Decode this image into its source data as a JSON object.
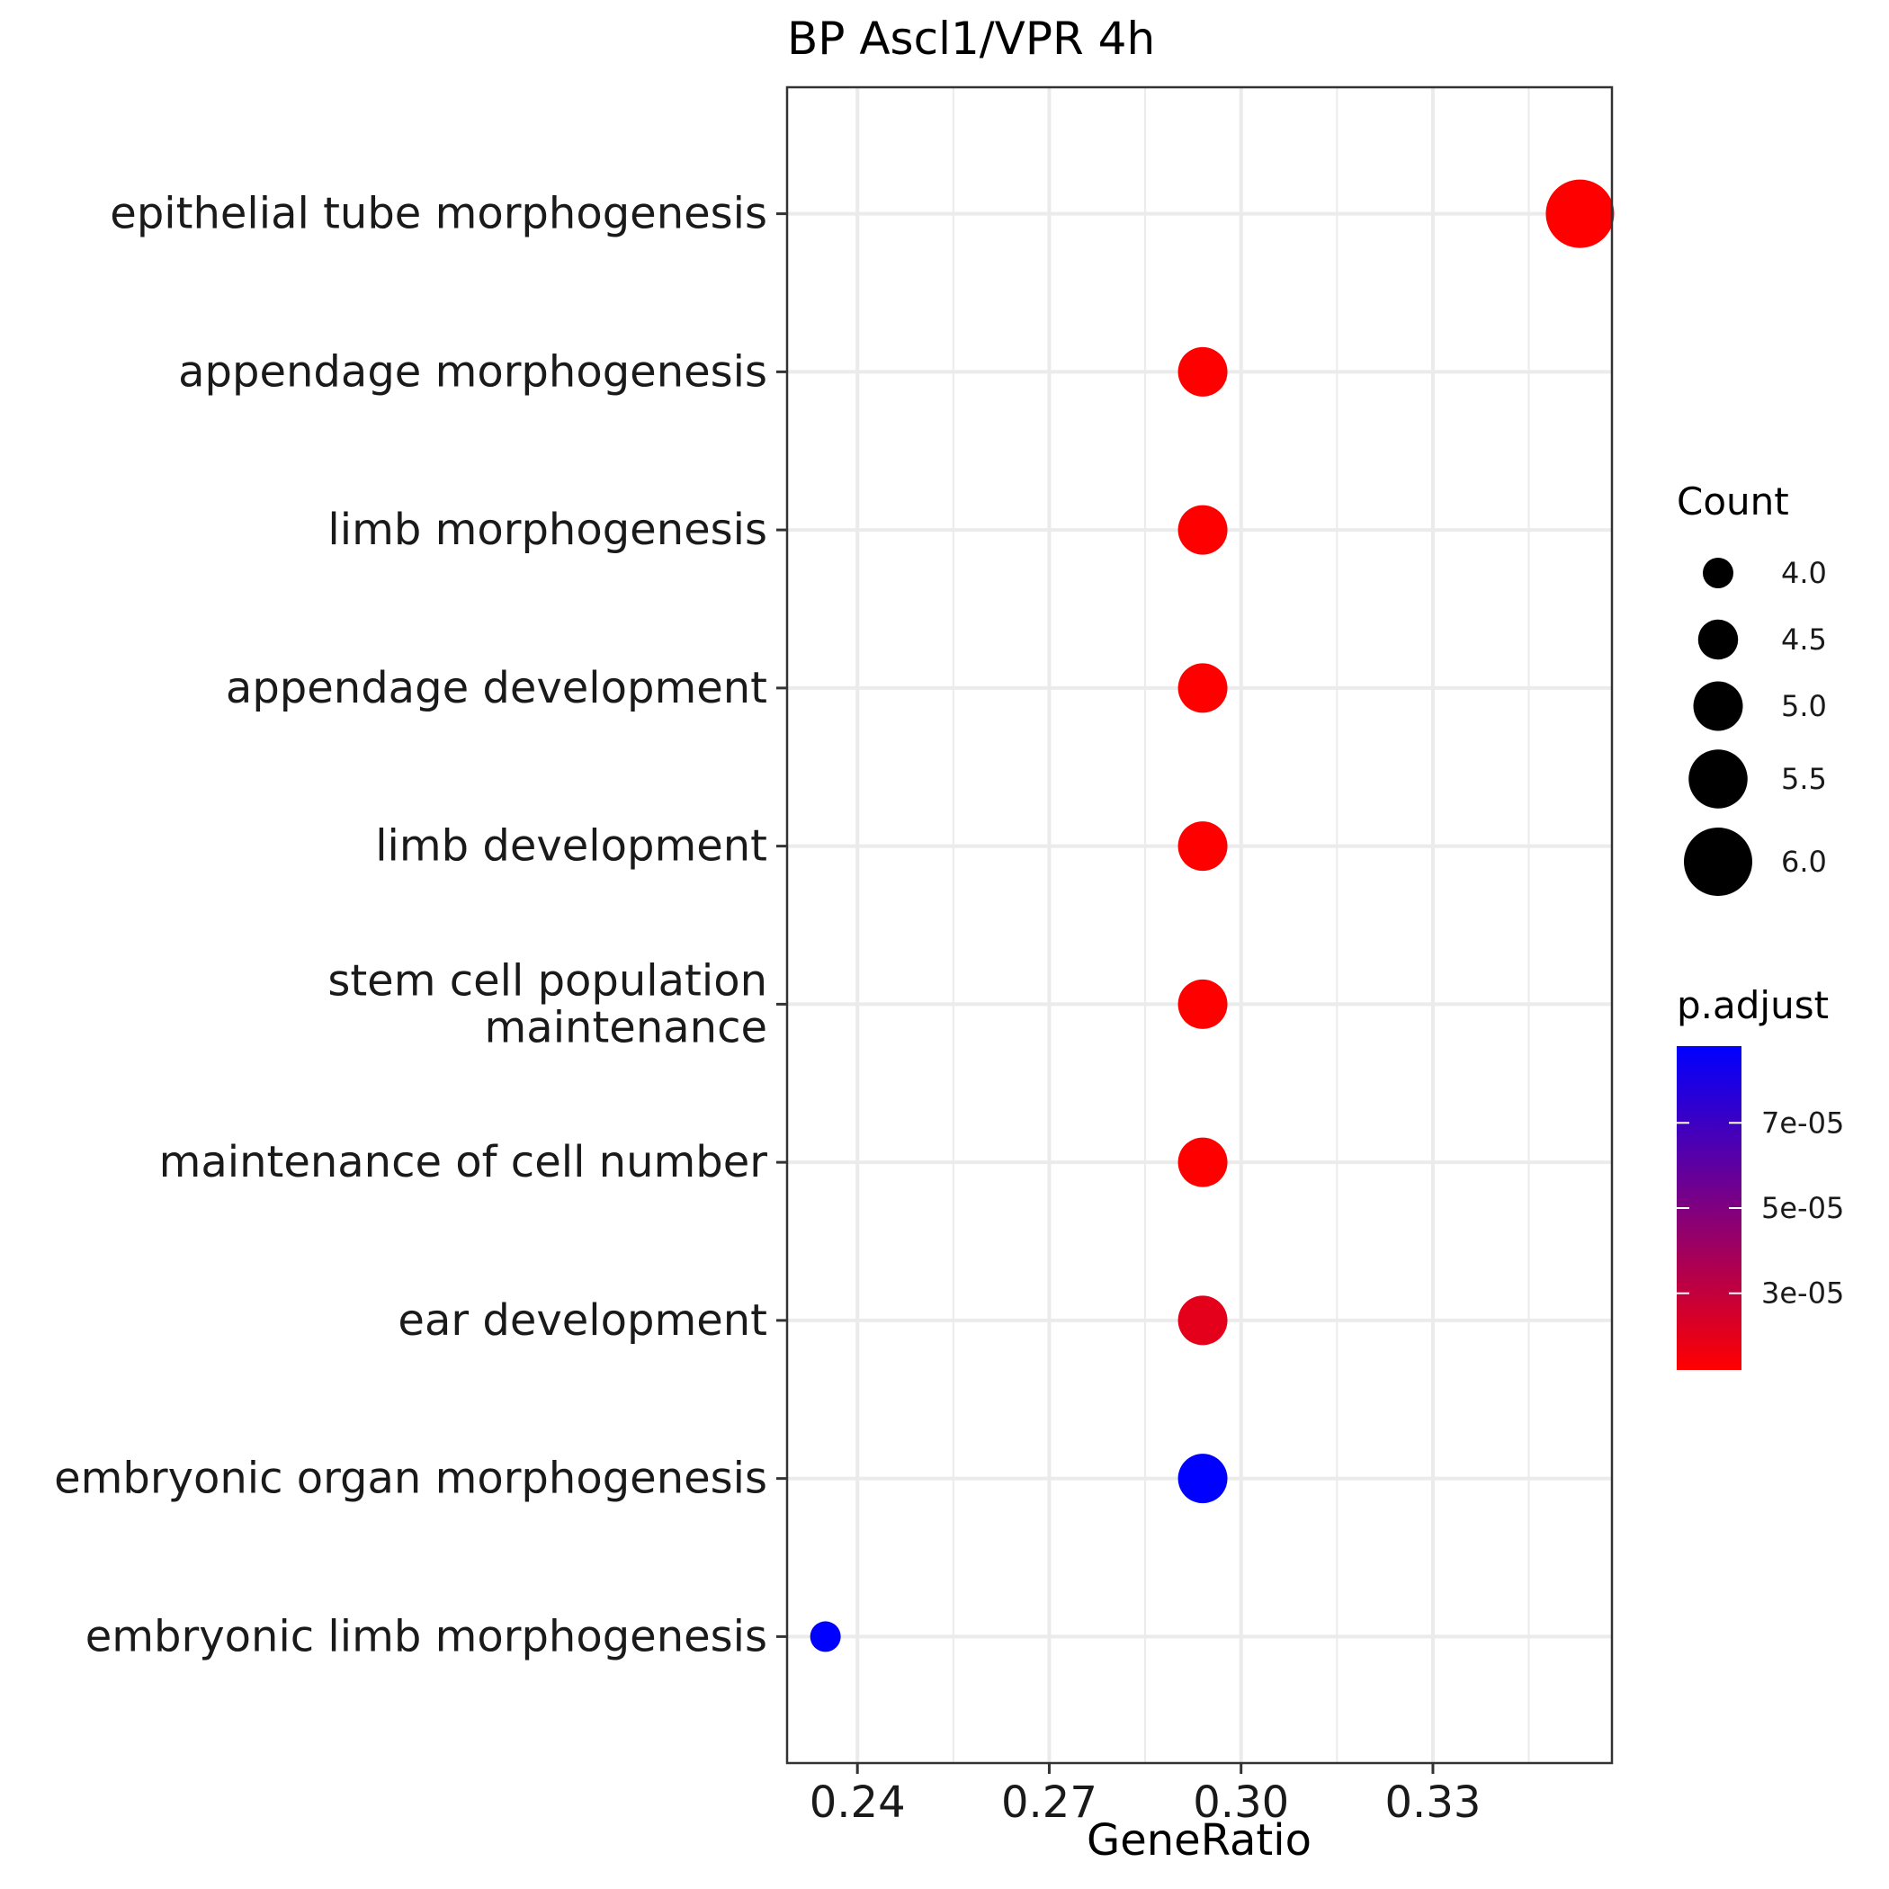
{
  "chart_data": {
    "type": "scatter",
    "title": "BP Ascl1/VPR 4h",
    "xlabel": "GeneRatio",
    "ylabel": "",
    "xlim": [
      0.229,
      0.358
    ],
    "x_ticks": [
      "0.24",
      "0.27",
      "0.30",
      "0.33"
    ],
    "x_tick_values": [
      0.24,
      0.27,
      0.3,
      0.33
    ],
    "grid": true,
    "categories": [
      "epithelial tube morphogenesis",
      "appendage morphogenesis",
      "limb morphogenesis",
      "appendage development",
      "limb development",
      "stem cell population maintenance",
      "maintenance of cell number",
      "ear development",
      "embryonic organ morphogenesis",
      "embryonic limb morphogenesis"
    ],
    "category_lines": [
      [
        "epithelial tube morphogenesis"
      ],
      [
        "appendage morphogenesis"
      ],
      [
        "limb morphogenesis"
      ],
      [
        "appendage development"
      ],
      [
        "limb development"
      ],
      [
        "stem cell population",
        "maintenance"
      ],
      [
        "maintenance of cell number"
      ],
      [
        "ear development"
      ],
      [
        "embryonic organ morphogenesis"
      ],
      [
        "embryonic limb morphogenesis"
      ]
    ],
    "points": [
      {
        "term": "epithelial tube morphogenesis",
        "gene_ratio": 0.353,
        "count": 6,
        "p_adjust": 1.2e-05
      },
      {
        "term": "appendage morphogenesis",
        "gene_ratio": 0.294,
        "count": 5,
        "p_adjust": 1.2e-05
      },
      {
        "term": "limb morphogenesis",
        "gene_ratio": 0.294,
        "count": 5,
        "p_adjust": 1.2e-05
      },
      {
        "term": "appendage development",
        "gene_ratio": 0.294,
        "count": 5,
        "p_adjust": 1.2e-05
      },
      {
        "term": "limb development",
        "gene_ratio": 0.294,
        "count": 5,
        "p_adjust": 1.2e-05
      },
      {
        "term": "stem cell population maintenance",
        "gene_ratio": 0.294,
        "count": 5,
        "p_adjust": 1.2e-05
      },
      {
        "term": "maintenance of cell number",
        "gene_ratio": 0.294,
        "count": 5,
        "p_adjust": 1.2e-05
      },
      {
        "term": "ear development",
        "gene_ratio": 0.294,
        "count": 5,
        "p_adjust": 2e-05
      },
      {
        "term": "embryonic organ morphogenesis",
        "gene_ratio": 0.294,
        "count": 5,
        "p_adjust": 8.8e-05
      },
      {
        "term": "embryonic limb morphogenesis",
        "gene_ratio": 0.235,
        "count": 4,
        "p_adjust": 8.8e-05
      }
    ],
    "size_legend": {
      "title": "Count",
      "values": [
        4.0,
        4.5,
        5.0,
        5.5,
        6.0
      ],
      "labels": [
        "4.0",
        "4.5",
        "5.0",
        "5.5",
        "6.0"
      ]
    },
    "color_legend": {
      "title": "p.adjust",
      "range": [
        1.2e-05,
        8.8e-05
      ],
      "low_color": "#ff0000",
      "high_color": "#0000ff",
      "ticks": [
        7e-05,
        5e-05,
        3e-05
      ],
      "labels": [
        "7e-05",
        "5e-05",
        "3e-05"
      ]
    }
  }
}
